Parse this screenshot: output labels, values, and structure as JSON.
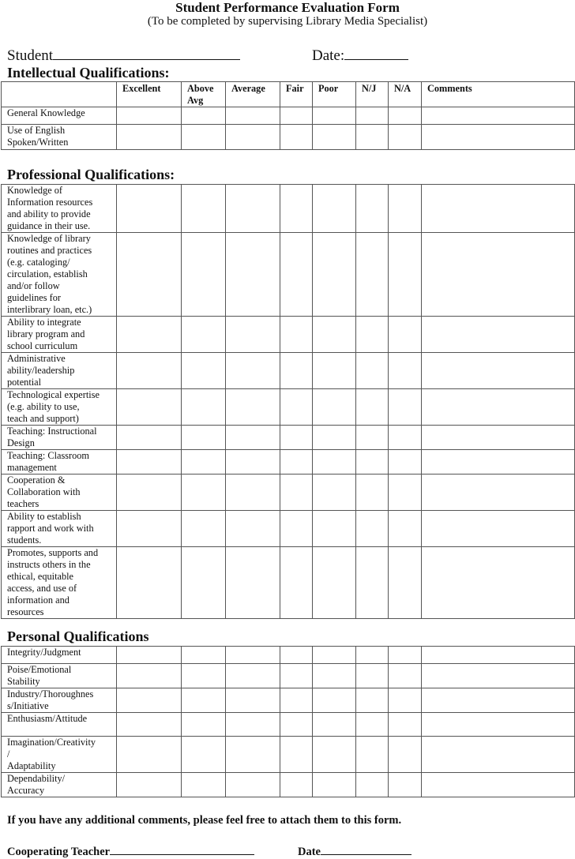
{
  "title": "Student Performance Evaluation Form",
  "subtitle": "(To be completed by supervising Library Media Specialist)",
  "student_label": "Student",
  "date_label": "Date:",
  "columns": [
    "",
    "Excellent",
    "Above Avg",
    "Average",
    "Fair",
    "Poor",
    "N/J",
    "N/A",
    "Comments"
  ],
  "sections": [
    {
      "title": "Intellectual Qualifications:",
      "rows": [
        "General Knowledge",
        "Use of English\nSpoken/Written"
      ]
    },
    {
      "title": "Professional Qualifications:",
      "rows": [
        "Knowledge of\nInformation resources\nand ability to provide\nguidance in their use.",
        "Knowledge of library\nroutines and practices\n(e.g. cataloging/\ncirculation, establish\nand/or follow\nguidelines for\ninterlibrary loan, etc.)",
        "Ability to integrate\nlibrary program and\nschool curriculum",
        "Administrative\nability/leadership\npotential",
        "Technological expertise\n(e.g. ability to use,\nteach and support)",
        "Teaching:  Instructional\nDesign",
        "Teaching:  Classroom\nmanagement",
        "Cooperation &\nCollaboration with\nteachers",
        "Ability to establish\nrapport and work with\nstudents.",
        "Promotes, supports and\ninstructs others in the\nethical, equitable\naccess, and use of\ninformation and\nresources"
      ]
    },
    {
      "title": "Personal Qualifications",
      "rows": [
        "Integrity/Judgment",
        "Poise/Emotional\nStability",
        "Industry/Thoroughnes\ns/Initiative",
        "Enthusiasm/Attitude",
        "Imagination/Creativity\n/\nAdaptability",
        "Dependability/\nAccuracy"
      ]
    }
  ],
  "footer_note": "If you have any additional comments, please feel free to attach them to this form.",
  "teacher_label": "Cooperating Teacher",
  "footer_date_label": "Date"
}
